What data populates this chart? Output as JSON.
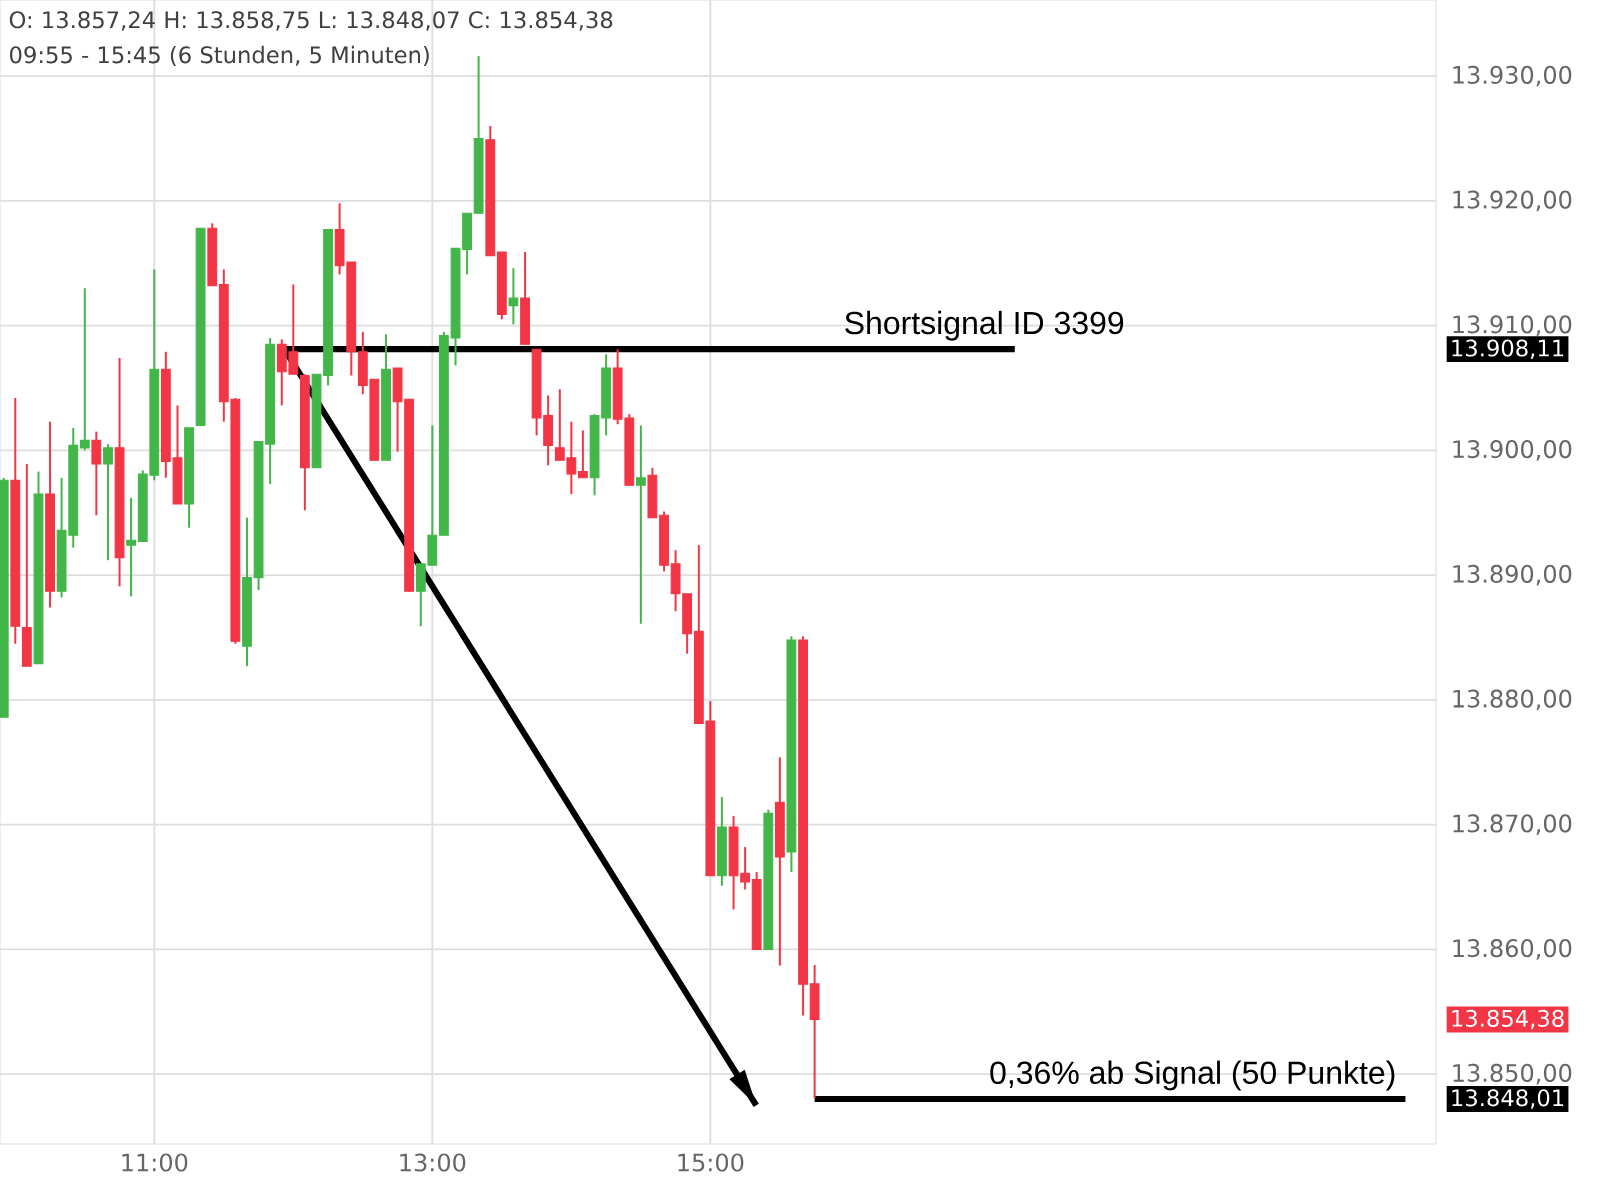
{
  "chart_data": {
    "type": "candlestick",
    "title": "O: 13.857,24  H: 13.858,75  L: 13.848,07  C: 13.854,38",
    "subtitle": "09:55 - 15:45  (6 Stunden, 5 Minuten)",
    "x": [
      9.917,
      10,
      10.083,
      10.167,
      10.25,
      10.333,
      10.417,
      10.5,
      10.583,
      10.667,
      10.75,
      10.833,
      10.917,
      11,
      11.083,
      11.167,
      11.25,
      11.333,
      11.417,
      11.5,
      11.583,
      11.667,
      11.75,
      11.833,
      11.917,
      12,
      12.083,
      12.167,
      12.25,
      12.333,
      12.417,
      12.5,
      12.583,
      12.667,
      12.75,
      12.833,
      12.917,
      13,
      13.083,
      13.167,
      13.25,
      13.333,
      13.417,
      13.5,
      13.583,
      13.667,
      13.75,
      13.833,
      13.917,
      14,
      14.083,
      14.167,
      14.25,
      14.333,
      14.417,
      14.5,
      14.583,
      14.667,
      14.75,
      14.833,
      14.917,
      15,
      15.083,
      15.167,
      15.25,
      15.333,
      15.417,
      15.5,
      15.583,
      15.667,
      15.75
    ],
    "ohlc": [
      [
        13878.6,
        13897.8,
        13878.6,
        13897.6
      ],
      [
        13897.6,
        13904.2,
        13884.5,
        13885.9
      ],
      [
        13885.8,
        13898.9,
        13882.7,
        13882.7
      ],
      [
        13882.9,
        13898.3,
        13882.9,
        13896.5
      ],
      [
        13896.5,
        13902.3,
        13887.4,
        13888.7
      ],
      [
        13888.7,
        13897.8,
        13888.2,
        13893.6
      ],
      [
        13893.2,
        13901.8,
        13892.2,
        13900.4
      ],
      [
        13900.2,
        13913.0,
        13900.0,
        13900.8
      ],
      [
        13900.8,
        13901.5,
        13894.8,
        13898.9
      ],
      [
        13898.9,
        13900.5,
        13891.2,
        13900.2
      ],
      [
        13900.2,
        13907.4,
        13889.1,
        13891.4
      ],
      [
        13892.4,
        13896.2,
        13888.3,
        13892.8
      ],
      [
        13892.7,
        13898.4,
        13892.7,
        13898.1
      ],
      [
        13898.0,
        13914.5,
        13897.6,
        13906.5
      ],
      [
        13906.5,
        13907.9,
        13897.8,
        13899.1
      ],
      [
        13899.4,
        13903.6,
        13895.7,
        13895.7
      ],
      [
        13895.7,
        13901.8,
        13893.8,
        13901.8
      ],
      [
        13902.0,
        13917.8,
        13902.0,
        13917.8
      ],
      [
        13917.8,
        13918.2,
        13913.2,
        13913.2
      ],
      [
        13913.3,
        13914.5,
        13902.3,
        13903.9
      ],
      [
        13904.1,
        13904.2,
        13884.5,
        13884.7
      ],
      [
        13884.3,
        13894.6,
        13882.7,
        13889.8
      ],
      [
        13889.8,
        13900.7,
        13888.8,
        13900.7
      ],
      [
        13900.5,
        13909.0,
        13897.3,
        13908.5
      ],
      [
        13908.5,
        13908.9,
        13903.6,
        13906.3
      ],
      [
        13907.9,
        13913.3,
        13906.1,
        13906.1
      ],
      [
        13906.0,
        13906.1,
        13895.2,
        13898.6
      ],
      [
        13898.6,
        13906.1,
        13898.6,
        13906.1
      ],
      [
        13906.0,
        13917.7,
        13905.2,
        13917.7
      ],
      [
        13917.7,
        13919.8,
        13914.1,
        13914.8
      ],
      [
        13915.1,
        13915.1,
        13906.0,
        13907.9
      ],
      [
        13907.9,
        13909.5,
        13904.5,
        13905.2
      ],
      [
        13905.7,
        13905.7,
        13899.2,
        13899.2
      ],
      [
        13899.2,
        13909.3,
        13899.2,
        13906.5
      ],
      [
        13906.6,
        13906.6,
        13899.9,
        13903.9
      ],
      [
        13904.1,
        13904.1,
        13888.7,
        13888.7
      ],
      [
        13888.7,
        13890.9,
        13885.9,
        13890.9
      ],
      [
        13890.8,
        13902.0,
        13890.8,
        13893.2
      ],
      [
        13893.2,
        13909.5,
        13893.2,
        13909.2
      ],
      [
        13909.0,
        13916.2,
        13906.8,
        13916.2
      ],
      [
        13916.1,
        13919.0,
        13914.1,
        13919.0
      ],
      [
        13919.0,
        13931.6,
        13919.0,
        13925.0
      ],
      [
        13924.9,
        13926.0,
        13915.6,
        13915.6
      ],
      [
        13915.9,
        13915.9,
        13910.5,
        13910.9
      ],
      [
        13911.6,
        13914.6,
        13910.1,
        13912.2
      ],
      [
        13912.2,
        13915.9,
        13908.5,
        13908.5
      ],
      [
        13908.1,
        13908.1,
        13901.2,
        13902.6
      ],
      [
        13902.8,
        13904.4,
        13898.8,
        13900.4
      ],
      [
        13900.2,
        13904.9,
        13899.2,
        13899.2
      ],
      [
        13899.4,
        13902.3,
        13896.5,
        13898.1
      ],
      [
        13898.3,
        13901.6,
        13897.8,
        13897.8
      ],
      [
        13897.8,
        13902.9,
        13896.4,
        13902.8
      ],
      [
        13902.6,
        13907.7,
        13901.2,
        13906.6
      ],
      [
        13906.6,
        13908.1,
        13902.1,
        13902.5
      ],
      [
        13902.6,
        13902.9,
        13897.2,
        13897.2
      ],
      [
        13897.2,
        13902.0,
        13886.1,
        13897.8
      ],
      [
        13898.0,
        13898.6,
        13894.6,
        13894.6
      ],
      [
        13894.8,
        13895.1,
        13890.3,
        13890.8
      ],
      [
        13890.9,
        13892.0,
        13887.1,
        13888.5
      ],
      [
        13888.5,
        13888.5,
        13883.7,
        13885.3
      ],
      [
        13885.5,
        13892.4,
        13878.1,
        13878.1
      ],
      [
        13878.3,
        13879.9,
        13865.9,
        13865.9
      ],
      [
        13865.9,
        13872.2,
        13865.1,
        13869.8
      ],
      [
        13869.8,
        13870.7,
        13863.2,
        13865.9
      ],
      [
        13866.1,
        13868.2,
        13864.8,
        13865.4
      ],
      [
        13865.6,
        13866.2,
        13860.0,
        13860.0
      ],
      [
        13860.0,
        13871.2,
        13860.0,
        13870.9
      ],
      [
        13871.8,
        13875.4,
        13858.7,
        13867.4
      ],
      [
        13867.8,
        13885.1,
        13866.2,
        13884.8
      ],
      [
        13884.8,
        13885.1,
        13854.7,
        13857.2
      ],
      [
        13857.24,
        13858.75,
        13848.07,
        13854.38
      ]
    ],
    "colors": [
      "#43b649",
      "#f23645",
      "#f23645",
      "#43b649",
      "#f23645",
      "#43b649",
      "#43b649",
      "#43b649",
      "#f23645",
      "#43b649",
      "#f23645",
      "#43b649",
      "#43b649",
      "#43b649",
      "#f23645",
      "#f23645",
      "#43b649",
      "#43b649",
      "#f23645",
      "#f23645",
      "#f23645",
      "#43b649",
      "#43b649",
      "#43b649",
      "#f23645",
      "#f23645",
      "#f23645",
      "#43b649",
      "#43b649",
      "#f23645",
      "#f23645",
      "#f23645",
      "#f23645",
      "#43b649",
      "#f23645",
      "#f23645",
      "#43b649",
      "#43b649",
      "#43b649",
      "#43b649",
      "#43b649",
      "#43b649",
      "#f23645",
      "#f23645",
      "#43b649",
      "#f23645",
      "#f23645",
      "#f23645",
      "#f23645",
      "#f23645",
      "#f23645",
      "#43b649",
      "#43b649",
      "#f23645",
      "#f23645",
      "#43b649",
      "#f23645",
      "#f23645",
      "#f23645",
      "#f23645",
      "#f23645",
      "#f23645",
      "#43b649",
      "#f23645",
      "#f23645",
      "#f23645",
      "#43b649",
      "#f23645",
      "#43b649",
      "#f23645",
      "#f23645"
    ],
    "series": [
      {
        "type": "line",
        "color": "#000000",
        "x": [
          11.92,
          17.19
        ],
        "values": [
          13908.11,
          13908.11
        ]
      },
      {
        "type": "line",
        "color": "#000000",
        "x": [
          11.92,
          15.33
        ],
        "values": [
          13908.4,
          13847.5
        ]
      },
      {
        "type": "line",
        "color": "#000000",
        "x": [
          15.75,
          20.0
        ],
        "values": [
          13848.01,
          13848.01
        ]
      }
    ],
    "annotations": [
      {
        "text": "Shortsignal ID 3399",
        "x": 16.97,
        "y": 13908.11
      },
      {
        "text": "0,36% ab Signal (50 Punkte)",
        "x": 18.47,
        "y": 13848.01
      }
    ],
    "xlim": [
      9.89,
      20.22
    ],
    "ylim": [
      13844.4,
      13936.1
    ],
    "xticks": [
      {
        "value": 11,
        "label": "11:00"
      },
      {
        "value": 13,
        "label": "13:00"
      },
      {
        "value": 15,
        "label": "15:00"
      }
    ],
    "yticks": [
      {
        "value": 13850,
        "label": "13.850,00"
      },
      {
        "value": 13860,
        "label": "13.860,00"
      },
      {
        "value": 13870,
        "label": "13.870,00"
      },
      {
        "value": 13880,
        "label": "13.880,00"
      },
      {
        "value": 13890,
        "label": "13.890,00"
      },
      {
        "value": 13900,
        "label": "13.900,00"
      },
      {
        "value": 13910,
        "label": "13.910,00"
      },
      {
        "value": 13920,
        "label": "13.920,00"
      },
      {
        "value": 13930,
        "label": "13.930,00"
      },
      {
        "value": 13908.11,
        "label": "13.908,11"
      },
      {
        "value": 13854.38,
        "label": "13.854,38"
      },
      {
        "value": 13848.01,
        "label": "13.848,01"
      }
    ],
    "grid": true
  }
}
